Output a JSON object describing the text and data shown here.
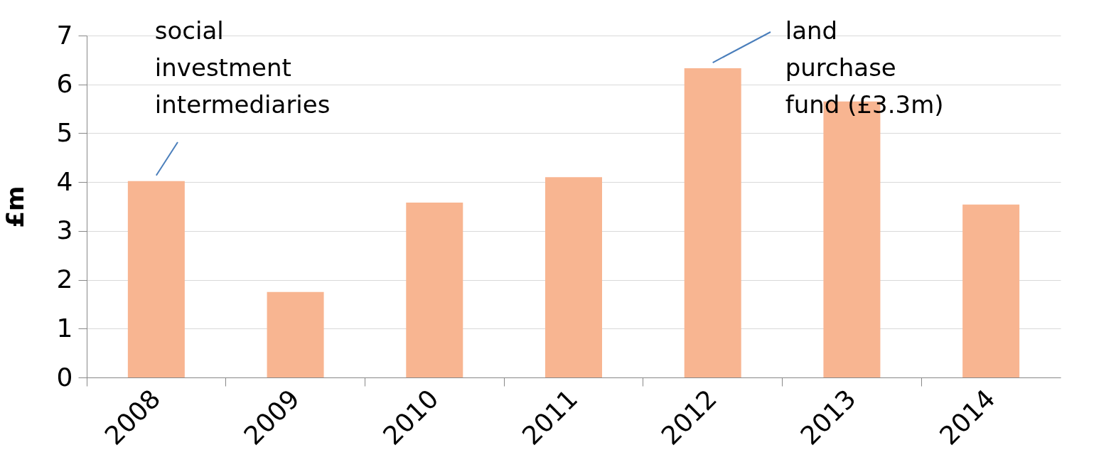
{
  "chart_data": {
    "type": "bar",
    "ylabel": "£m",
    "categories": [
      "2008",
      "2009",
      "2010",
      "2011",
      "2012",
      "2013",
      "2014"
    ],
    "values": [
      4.02,
      1.75,
      3.58,
      4.1,
      6.33,
      5.65,
      3.54
    ],
    "color": "#f8b591",
    "ylim": [
      0,
      7
    ],
    "yticks": [
      0,
      1,
      2,
      3,
      4,
      5,
      6,
      7
    ],
    "grid": "y",
    "annotations": [
      {
        "text": "social\ninvestment\nintermediaries",
        "x": "2008",
        "y": 4.02
      },
      {
        "text": "land\npurchase\nfund (£3.3m)",
        "x": "2012",
        "y": 6.33
      }
    ]
  }
}
